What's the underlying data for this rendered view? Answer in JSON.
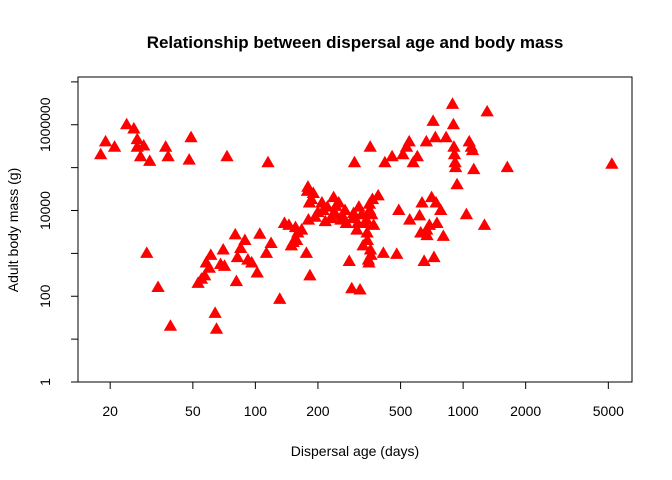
{
  "chart_data": {
    "type": "scatter",
    "title": "Relationship between dispersal age and body mass",
    "xlabel": "Dispersal age (days)",
    "ylabel": "Adult body mass (g)",
    "x_scale": "log",
    "y_scale": "log",
    "xlim": [
      14,
      6500
    ],
    "ylim": [
      1,
      13000000
    ],
    "x_ticks": [
      20,
      50,
      100,
      200,
      500,
      1000,
      2000,
      5000
    ],
    "x_tick_labels": [
      "20",
      "50",
      "100",
      "200",
      "500",
      "1000",
      "2000",
      "5000"
    ],
    "y_ticks": [
      1,
      100,
      10000,
      1000000
    ],
    "y_tick_labels": [
      "1",
      "100",
      "10000",
      "1000000"
    ],
    "y_minor_ticks": [
      10,
      1000,
      100000,
      10000000
    ],
    "grid": false,
    "marker": "filled-triangle",
    "marker_color": "#ff0000",
    "points": [
      [
        18,
        200000
      ],
      [
        19,
        400000
      ],
      [
        21,
        300000
      ],
      [
        24,
        1000000
      ],
      [
        26,
        800000
      ],
      [
        27,
        450000
      ],
      [
        27,
        300000
      ],
      [
        28,
        180000
      ],
      [
        29,
        320000
      ],
      [
        30,
        1000
      ],
      [
        31,
        140000
      ],
      [
        34,
        160
      ],
      [
        37,
        300000
      ],
      [
        38,
        180000
      ],
      [
        39,
        20
      ],
      [
        48,
        150000
      ],
      [
        49,
        500000
      ],
      [
        53,
        200
      ],
      [
        55,
        250
      ],
      [
        57,
        300
      ],
      [
        58,
        600
      ],
      [
        60,
        450
      ],
      [
        61,
        900
      ],
      [
        64,
        40
      ],
      [
        65,
        17
      ],
      [
        68,
        550
      ],
      [
        70,
        1200
      ],
      [
        71,
        500
      ],
      [
        73,
        180000
      ],
      [
        80,
        2700
      ],
      [
        81,
        220
      ],
      [
        82,
        800
      ],
      [
        85,
        1300
      ],
      [
        89,
        2000
      ],
      [
        92,
        700
      ],
      [
        96,
        600
      ],
      [
        102,
        350
      ],
      [
        105,
        2800
      ],
      [
        113,
        1000
      ],
      [
        115,
        130000
      ],
      [
        119,
        1700
      ],
      [
        131,
        85
      ],
      [
        138,
        5000
      ],
      [
        145,
        4500
      ],
      [
        149,
        1500
      ],
      [
        152,
        1800
      ],
      [
        156,
        4000
      ],
      [
        158,
        2000
      ],
      [
        160,
        3000
      ],
      [
        167,
        3500
      ],
      [
        176,
        1000
      ],
      [
        178,
        28000
      ],
      [
        179,
        35000
      ],
      [
        180,
        6000
      ],
      [
        182,
        15000
      ],
      [
        183,
        300
      ],
      [
        186,
        18000
      ],
      [
        190,
        25000
      ],
      [
        194,
        7000
      ],
      [
        200,
        9000
      ],
      [
        209,
        15000
      ],
      [
        212,
        10000
      ],
      [
        217,
        5500
      ],
      [
        222,
        12000
      ],
      [
        232,
        6500
      ],
      [
        236,
        8000
      ],
      [
        238,
        20000
      ],
      [
        240,
        9000
      ],
      [
        244,
        12500
      ],
      [
        252,
        15000
      ],
      [
        258,
        6000
      ],
      [
        262,
        7500
      ],
      [
        270,
        10000
      ],
      [
        274,
        5000
      ],
      [
        283,
        650
      ],
      [
        291,
        150
      ],
      [
        295,
        6500
      ],
      [
        297,
        8500
      ],
      [
        300,
        130000
      ],
      [
        308,
        3500
      ],
      [
        311,
        5000
      ],
      [
        315,
        12000
      ],
      [
        319,
        140
      ],
      [
        325,
        8000
      ],
      [
        330,
        1500
      ],
      [
        336,
        5000
      ],
      [
        342,
        6000
      ],
      [
        345,
        3000
      ],
      [
        346,
        2000
      ],
      [
        350,
        700
      ],
      [
        352,
        600
      ],
      [
        354,
        14000
      ],
      [
        355,
        10000
      ],
      [
        357,
        300000
      ],
      [
        358,
        1200
      ],
      [
        360,
        900
      ],
      [
        363,
        8000
      ],
      [
        366,
        18000
      ],
      [
        371,
        4500
      ],
      [
        390,
        22000
      ],
      [
        413,
        1000
      ],
      [
        420,
        130000
      ],
      [
        455,
        180000
      ],
      [
        479,
        950
      ],
      [
        490,
        10000
      ],
      [
        513,
        200000
      ],
      [
        534,
        300000
      ],
      [
        550,
        400000
      ],
      [
        553,
        6000
      ],
      [
        575,
        130000
      ],
      [
        602,
        180000
      ],
      [
        617,
        7500
      ],
      [
        625,
        3000
      ],
      [
        634,
        15000
      ],
      [
        649,
        650
      ],
      [
        665,
        400000
      ],
      [
        668,
        3500
      ],
      [
        670,
        2600
      ],
      [
        688,
        4500
      ],
      [
        705,
        20000
      ],
      [
        717,
        1200000
      ],
      [
        724,
        800
      ],
      [
        735,
        500000
      ],
      [
        741,
        15000
      ],
      [
        748,
        5000
      ],
      [
        780,
        10000
      ],
      [
        803,
        2500
      ],
      [
        828,
        500000
      ],
      [
        889,
        3000000
      ],
      [
        898,
        1000000
      ],
      [
        903,
        300000
      ],
      [
        909,
        200000
      ],
      [
        915,
        130000
      ],
      [
        920,
        100000
      ],
      [
        935,
        40000
      ],
      [
        1037,
        8000
      ],
      [
        1070,
        400000
      ],
      [
        1095,
        300000
      ],
      [
        1110,
        250000
      ],
      [
        1125,
        90000
      ],
      [
        1267,
        4500
      ],
      [
        1305,
        2000000
      ],
      [
        1632,
        100000
      ],
      [
        5200,
        120000
      ]
    ]
  }
}
